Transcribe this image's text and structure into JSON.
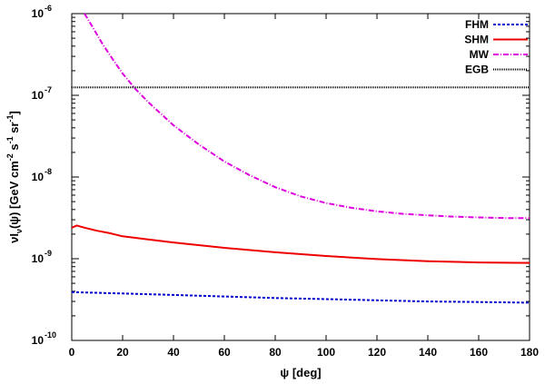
{
  "chart_data": {
    "type": "line",
    "xlabel": "ψ [deg]",
    "ylabel_parts": [
      "νI",
      "ν",
      "(ψ) [GeV cm",
      "-2",
      " s",
      "-1",
      " sr",
      "-1",
      "]"
    ],
    "x_ticks": [
      "0",
      "20",
      "40",
      "60",
      "80",
      "100",
      "120",
      "140",
      "160",
      "180"
    ],
    "y_ticks": [
      {
        "base": "10",
        "exp": "-10",
        "value": 1e-10
      },
      {
        "base": "10",
        "exp": "-9",
        "value": 1e-09
      },
      {
        "base": "10",
        "exp": "-8",
        "value": 1e-08
      },
      {
        "base": "10",
        "exp": "-7",
        "value": 1e-07
      },
      {
        "base": "10",
        "exp": "-6",
        "value": 1e-06
      }
    ],
    "xlim": [
      0,
      180
    ],
    "ylim": [
      1e-10,
      1e-06
    ],
    "y_scale": "log",
    "grid": false,
    "legend_position": "top-right",
    "series": [
      {
        "name": "FHM",
        "color": "#0000cc",
        "style": "dashed",
        "x": [
          0,
          20,
          40,
          60,
          80,
          100,
          120,
          140,
          160,
          180
        ],
        "y": [
          3.9e-10,
          3.75e-10,
          3.6e-10,
          3.45e-10,
          3.3e-10,
          3.2e-10,
          3.1e-10,
          3e-10,
          2.95e-10,
          2.9e-10
        ]
      },
      {
        "name": "SHM",
        "color": "#ee0000",
        "style": "solid",
        "x": [
          0,
          2,
          5,
          10,
          15,
          20,
          30,
          40,
          60,
          80,
          100,
          120,
          140,
          160,
          180
        ],
        "y": [
          2.4e-09,
          2.55e-09,
          2.4e-09,
          2.2e-09,
          2.05e-09,
          1.88e-09,
          1.72e-09,
          1.58e-09,
          1.36e-09,
          1.2e-09,
          1.08e-09,
          9.9e-10,
          9.3e-10,
          9e-10,
          8.9e-10
        ]
      },
      {
        "name": "MW",
        "color": "#dd00dd",
        "style": "dash-dot",
        "x": [
          5,
          8,
          12,
          16,
          20,
          25,
          30,
          40,
          50,
          60,
          70,
          80,
          90,
          100,
          110,
          120,
          130,
          140,
          150,
          160,
          170,
          180
        ],
        "y": [
          1e-06,
          7e-07,
          4.3e-07,
          2.8e-07,
          1.85e-07,
          1.2e-07,
          8.3e-08,
          4.3e-08,
          2.5e-08,
          1.55e-08,
          1.05e-08,
          7.5e-09,
          5.8e-09,
          4.8e-09,
          4.2e-09,
          3.8e-09,
          3.55e-09,
          3.4e-09,
          3.28e-09,
          3.2e-09,
          3.15e-09,
          3.15e-09
        ]
      },
      {
        "name": "EGB",
        "color": "#000000",
        "style": "dotted",
        "x": [
          0,
          180
        ],
        "y": [
          1.25e-07,
          1.25e-07
        ]
      }
    ]
  }
}
